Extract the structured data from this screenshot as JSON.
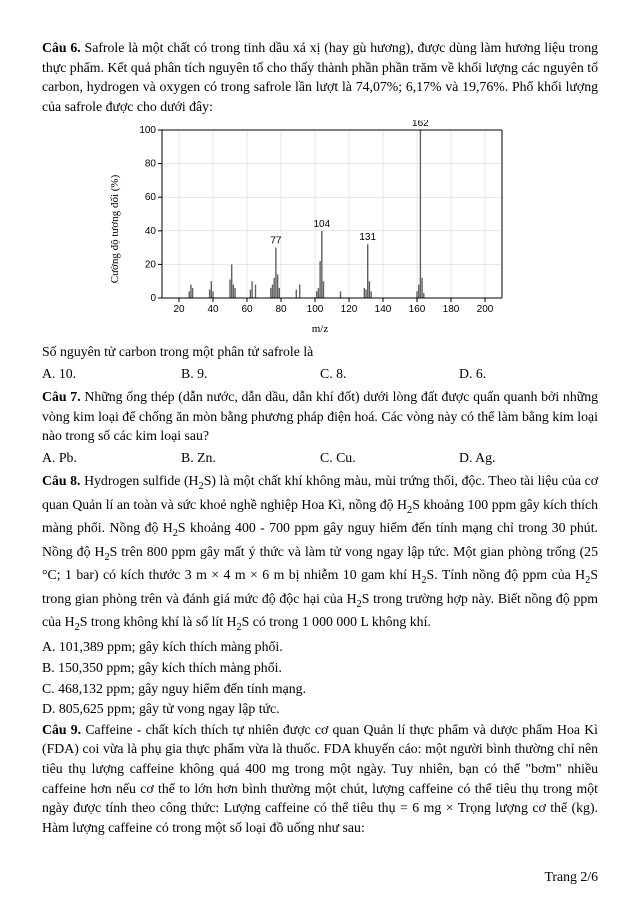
{
  "q6": {
    "label": "Câu 6.",
    "text": "Safrole là một chất có trong tinh dầu xá xị (hay gù hương), được dùng làm hương liệu trong thực phẩm. Kết quả phân tích nguyên tố cho thấy thành phần phần trăm về khối lượng các nguyên tố carbon, hydrogen và oxygen có trong safrole lần lượt là 74,07%; 6,17% và 19,76%. Phổ khối lượng của safrole được cho dưới đây:",
    "prompt": "Số nguyên tử carbon trong một phân tử safrole là",
    "optA": "A. 10.",
    "optB": "B. 9.",
    "optC": "C. 8.",
    "optD": "D. 6."
  },
  "chart": {
    "ylabel": "Cường độ tương đối (%)",
    "xlabel": "m/z",
    "ylim": [
      0,
      100
    ],
    "xlim": [
      10,
      210
    ],
    "ytick_step": 20,
    "xtick_step": 20,
    "grid_color": "#d0d0d0",
    "axis_color": "#000000",
    "bar_color": "#606060",
    "peak_label_fontsize": 10,
    "tick_fontsize": 10,
    "bars": [
      {
        "mz": 26,
        "h": 4
      },
      {
        "mz": 27,
        "h": 8
      },
      {
        "mz": 28,
        "h": 6
      },
      {
        "mz": 38,
        "h": 5
      },
      {
        "mz": 39,
        "h": 10
      },
      {
        "mz": 40,
        "h": 4
      },
      {
        "mz": 50,
        "h": 11
      },
      {
        "mz": 51,
        "h": 20
      },
      {
        "mz": 52,
        "h": 8
      },
      {
        "mz": 53,
        "h": 6
      },
      {
        "mz": 62,
        "h": 5
      },
      {
        "mz": 63,
        "h": 10
      },
      {
        "mz": 65,
        "h": 8
      },
      {
        "mz": 74,
        "h": 6
      },
      {
        "mz": 75,
        "h": 8
      },
      {
        "mz": 76,
        "h": 12
      },
      {
        "mz": 77,
        "h": 30
      },
      {
        "mz": 78,
        "h": 14
      },
      {
        "mz": 79,
        "h": 6
      },
      {
        "mz": 89,
        "h": 5
      },
      {
        "mz": 91,
        "h": 8
      },
      {
        "mz": 101,
        "h": 4
      },
      {
        "mz": 102,
        "h": 6
      },
      {
        "mz": 103,
        "h": 22
      },
      {
        "mz": 104,
        "h": 40
      },
      {
        "mz": 105,
        "h": 10
      },
      {
        "mz": 115,
        "h": 4
      },
      {
        "mz": 129,
        "h": 6
      },
      {
        "mz": 130,
        "h": 5
      },
      {
        "mz": 131,
        "h": 32
      },
      {
        "mz": 132,
        "h": 10
      },
      {
        "mz": 133,
        "h": 4
      },
      {
        "mz": 160,
        "h": 4
      },
      {
        "mz": 161,
        "h": 8
      },
      {
        "mz": 162,
        "h": 100
      },
      {
        "mz": 163,
        "h": 12
      },
      {
        "mz": 164,
        "h": 3
      }
    ],
    "labels": [
      {
        "mz": 77,
        "text": "77"
      },
      {
        "mz": 104,
        "text": "104"
      },
      {
        "mz": 131,
        "text": "131"
      },
      {
        "mz": 162,
        "text": "162"
      }
    ]
  },
  "q7": {
    "label": "Câu 7.",
    "text": "Những ống thép (dẫn nước, dẫn dầu, dẫn khí đốt) dưới lòng đất được quấn quanh bởi những vòng kim loại để chống ăn mòn bằng phương pháp điện hoá. Các vòng này có thể làm bằng kim loại nào trong số các kim loại sau?",
    "optA": "A. Pb.",
    "optB": "B. Zn.",
    "optC": "C. Cu.",
    "optD": "D. Ag."
  },
  "q8": {
    "label": "Câu 8.",
    "text1": "Hydrogen sulfide (H",
    "text2": "S) là một chất khí không màu, mùi trứng thối, độc. Theo tài liệu của cơ quan Quản lí an toàn và sức khoẻ nghề nghiệp Hoa Kì, nồng độ H",
    "text3": "S khoảng 100 ppm gây kích thích màng phổi. Nồng độ H",
    "text4": "S khoảng 400 - 700 ppm gây nguy hiểm đến tính mạng chỉ trong 30 phút. Nồng độ H",
    "text5": "S trên 800 ppm gây mất ý thức và làm tử vong ngay lập tức. Một gian phòng trống (25 °C; 1 bar) có kích thước 3 m × 4 m × 6 m bị nhiễm 10 gam khí H",
    "text6": "S. Tính nồng độ ppm của H",
    "text7": "S trong gian phòng trên và đánh giá mức độ độc hại của H",
    "text8": "S trong trường hợp này. Biết nồng độ ppm của H",
    "text9": "S trong không khí là số lít H",
    "text10": "S có trong 1 000 000 L không khí.",
    "ansA": "A. 101,389 ppm; gây kích thích màng phổi.",
    "ansB": "B. 150,350 ppm; gây kích thích màng phổi.",
    "ansC": "C. 468,132 ppm; gây nguy hiểm đến tính mạng.",
    "ansD": "D. 805,625 ppm; gây tử vong ngay lập tức."
  },
  "q9": {
    "label": "Câu 9.",
    "text": "Caffeine - chất kích thích tự nhiên được cơ quan Quản lí thực phẩm và dược phẩm Hoa Kì (FDA) coi vừa là phụ gia thực phẩm vừa là thuốc. FDA khuyến cáo: một người bình thường chỉ nên tiêu thụ lượng caffeine không quá 400 mg trong một ngày. Tuy nhiên, bạn có thể \"bơm\" nhiều caffeine hơn nếu cơ thể to lớn hơn bình thường một chút, lượng caffeine có thể tiêu thụ trong một ngày được tính theo công thức: Lượng caffeine có thể tiêu thụ = 6 mg × Trọng lượng cơ thể (kg). Hàm lượng caffeine có trong một số loại đồ uống như sau:"
  },
  "footer": "Trang 2/6"
}
